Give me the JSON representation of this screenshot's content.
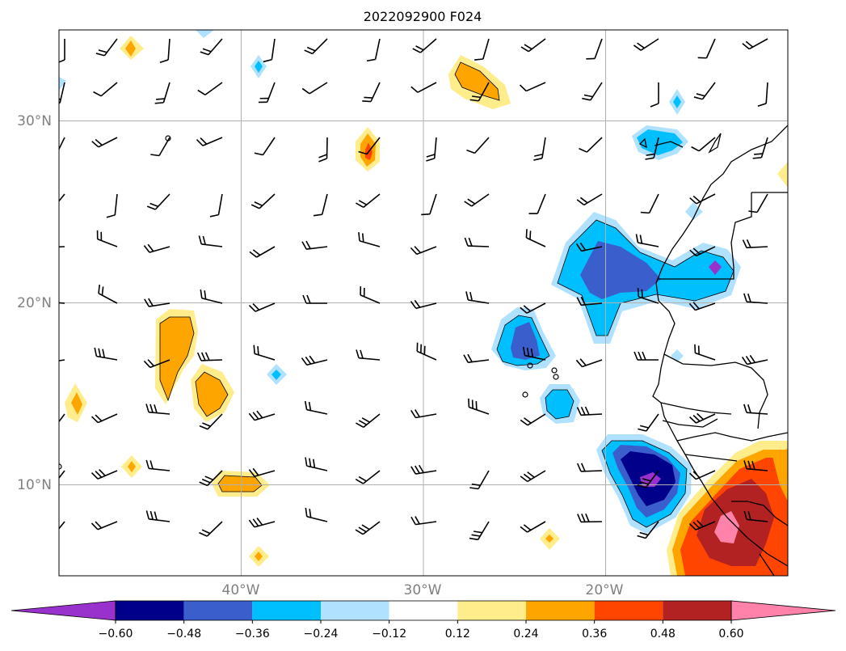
{
  "title": "2022092900 F024",
  "map": {
    "lon_range": [
      -50,
      -10
    ],
    "lat_range": [
      5,
      35
    ],
    "lon_ticks": [
      {
        "value": -40,
        "label": "40°W"
      },
      {
        "value": -30,
        "label": "30°W"
      },
      {
        "value": -20,
        "label": "20°W"
      }
    ],
    "lat_ticks": [
      {
        "value": 10,
        "label": "10°N"
      },
      {
        "value": 20,
        "label": "20°N"
      },
      {
        "value": 30,
        "label": "30°N"
      }
    ],
    "grid": true,
    "field": "filled contours with wind barbs and coastlines"
  },
  "colorbar": {
    "boundaries": [
      -0.72,
      -0.6,
      -0.48,
      -0.36,
      -0.24,
      -0.12,
      0.12,
      0.24,
      0.36,
      0.48,
      0.6,
      0.72
    ],
    "labels": [
      "−0.60",
      "−0.48",
      "−0.36",
      "−0.24",
      "−0.12",
      "0.12",
      "0.24",
      "0.36",
      "0.48",
      "0.60"
    ],
    "colors": [
      "#9932cc",
      "#00008b",
      "#3a5fcd",
      "#00bfff",
      "#b0e2ff",
      "#ffffff",
      "#ffec8b",
      "#ffa500",
      "#ff4500",
      "#b22222",
      "#ff82ab"
    ],
    "extend": "both"
  }
}
